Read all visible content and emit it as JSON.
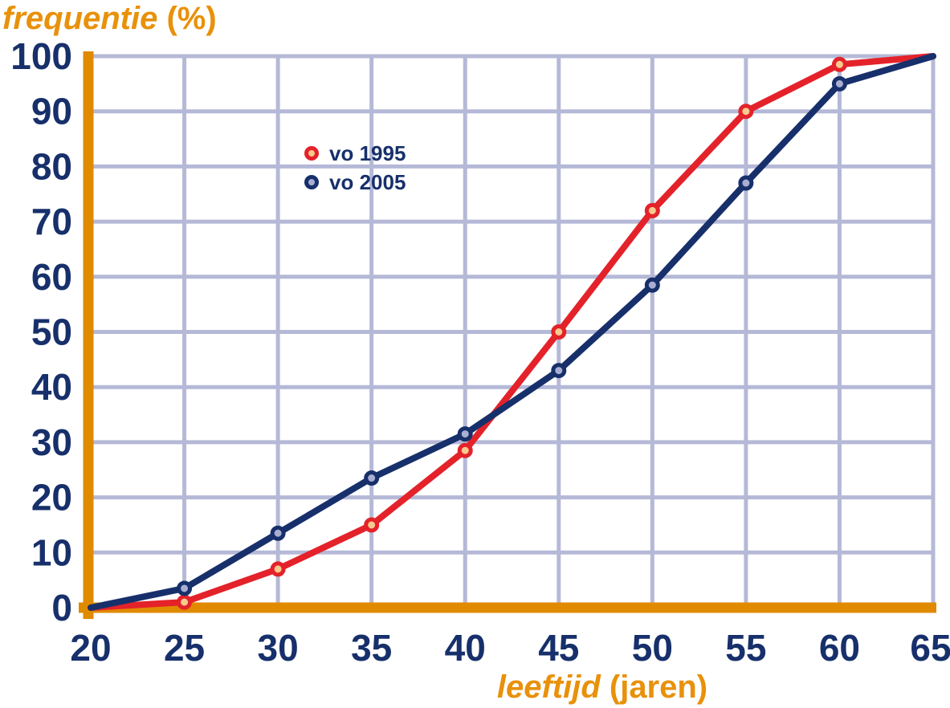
{
  "labels": {
    "y_title_italic": "frequentie",
    "y_title_unit": " (%)",
    "x_title_italic": "leeftijd",
    "x_title_unit": " (jaren)"
  },
  "legend": {
    "items": [
      {
        "label": "vo 1995"
      },
      {
        "label": "vo 2005"
      }
    ]
  },
  "chart_data": {
    "type": "line",
    "title": "frequentie (%)",
    "xlabel": "leeftijd (jaren)",
    "ylabel": "frequentie (%)",
    "x": [
      20,
      25,
      30,
      35,
      40,
      45,
      50,
      55,
      60,
      65
    ],
    "series": [
      {
        "name": "vo 1995",
        "color": "#E4222A",
        "marker_fill": "#F7CA8E",
        "values": [
          0,
          1,
          7,
          15,
          28.5,
          50,
          72,
          90,
          98.5,
          100
        ]
      },
      {
        "name": "vo 2005",
        "color": "#17306B",
        "marker_fill": "#A9AED2",
        "values": [
          0,
          3.5,
          13.5,
          23.5,
          31.5,
          43,
          58.5,
          77,
          95,
          100
        ]
      }
    ],
    "xlim": [
      20,
      65
    ],
    "ylim": [
      0,
      100
    ],
    "x_ticks": [
      20,
      25,
      30,
      35,
      40,
      45,
      50,
      55,
      60,
      65
    ],
    "y_ticks": [
      0,
      10,
      20,
      30,
      40,
      50,
      60,
      70,
      80,
      90,
      100
    ],
    "grid": true,
    "legend_position": "inside-upper-left",
    "colors": {
      "axis": "#E08A00",
      "grid": "#B5B9D7",
      "tick_text": "#17306B"
    }
  }
}
